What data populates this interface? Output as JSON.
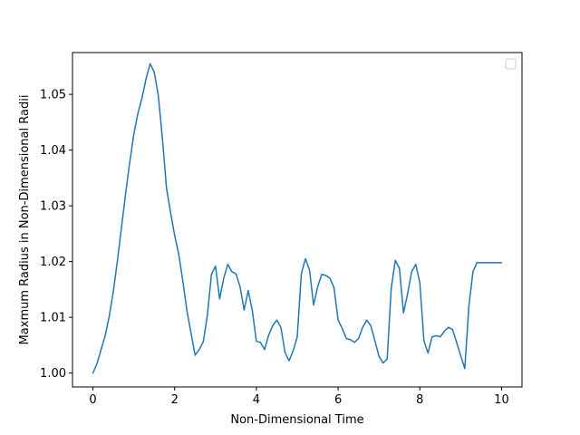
{
  "chart_data": {
    "type": "line",
    "title": "",
    "xlabel": "Non-Dimensional Time",
    "ylabel": "Maxmum Radius in Non-Dimensional Radii",
    "xlim": [
      -0.5,
      10.5
    ],
    "ylim": [
      0.9975,
      1.0575
    ],
    "xticks": [
      0,
      2,
      4,
      6,
      8,
      10
    ],
    "xtick_labels": [
      "0",
      "2",
      "4",
      "6",
      "8",
      "10"
    ],
    "yticks": [
      1.0,
      1.01,
      1.02,
      1.03,
      1.04,
      1.05
    ],
    "ytick_labels": [
      "1.00",
      "1.01",
      "1.02",
      "1.03",
      "1.04",
      "1.05"
    ],
    "grid": false,
    "legend": {
      "placement": "upper right",
      "entries": []
    },
    "series": [
      {
        "name": "",
        "color": "#1f77b4",
        "x": [
          0.0,
          0.1,
          0.2,
          0.3,
          0.4,
          0.5,
          0.6,
          0.7,
          0.8,
          0.9,
          1.0,
          1.1,
          1.2,
          1.3,
          1.4,
          1.5,
          1.6,
          1.7,
          1.8,
          1.9,
          2.0,
          2.1,
          2.2,
          2.3,
          2.4,
          2.5,
          2.6,
          2.7,
          2.8,
          2.9,
          3.0,
          3.1,
          3.2,
          3.3,
          3.4,
          3.5,
          3.6,
          3.7,
          3.8,
          3.9,
          4.0,
          4.1,
          4.2,
          4.3,
          4.4,
          4.5,
          4.6,
          4.7,
          4.8,
          4.9,
          5.0,
          5.1,
          5.2,
          5.3,
          5.4,
          5.5,
          5.6,
          5.7,
          5.8,
          5.9,
          6.0,
          6.1,
          6.2,
          6.3,
          6.4,
          6.5,
          6.6,
          6.7,
          6.8,
          6.9,
          7.0,
          7.1,
          7.2,
          7.3,
          7.4,
          7.5,
          7.6,
          7.7,
          7.8,
          7.9,
          8.0,
          8.1,
          8.2,
          8.3,
          8.4,
          8.5,
          8.6,
          8.7,
          8.8,
          8.9,
          9.0,
          9.1,
          9.2,
          9.3,
          9.4,
          9.5,
          9.6,
          9.7,
          9.8,
          9.9,
          10.0
        ],
        "y": [
          1.0,
          1.0017,
          1.0042,
          1.0067,
          1.0102,
          1.0147,
          1.0202,
          1.0262,
          1.0322,
          1.0378,
          1.0428,
          1.0466,
          1.0493,
          1.0528,
          1.0555,
          1.054,
          1.0498,
          1.0421,
          1.0332,
          1.0288,
          1.0247,
          1.0213,
          1.0165,
          1.0112,
          1.0072,
          1.0032,
          1.0042,
          1.0056,
          1.0103,
          1.0177,
          1.0192,
          1.0133,
          1.017,
          1.0195,
          1.0182,
          1.0178,
          1.0155,
          1.0113,
          1.0148,
          1.0112,
          1.0057,
          1.0055,
          1.0042,
          1.0068,
          1.0085,
          1.0095,
          1.0082,
          1.0037,
          1.0022,
          1.004,
          1.0065,
          1.0178,
          1.0205,
          1.0185,
          1.0122,
          1.0155,
          1.0177,
          1.0175,
          1.017,
          1.0153,
          1.0095,
          1.008,
          1.0062,
          1.006,
          1.0055,
          1.0062,
          1.0082,
          1.0095,
          1.0085,
          1.0058,
          1.003,
          1.0018,
          1.0025,
          1.0152,
          1.0202,
          1.0188,
          1.0108,
          1.0142,
          1.0182,
          1.0195,
          1.0162,
          1.0058,
          1.0036,
          1.0065,
          1.0067,
          1.0065,
          1.0075,
          1.0082,
          1.0078,
          1.0055,
          1.0031,
          1.0008,
          1.012,
          1.0182,
          1.0198,
          1.0198,
          1.0198,
          1.0198,
          1.0198,
          1.0198,
          1.0198
        ]
      }
    ]
  }
}
